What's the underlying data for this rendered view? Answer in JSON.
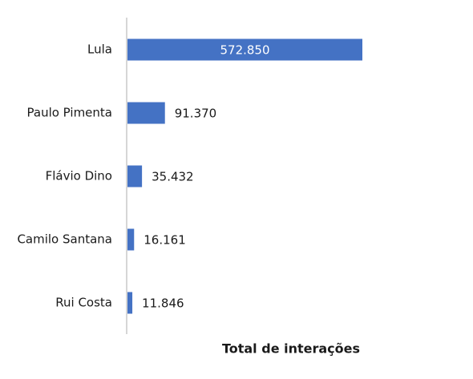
{
  "chart_data": {
    "type": "bar",
    "orientation": "horizontal",
    "x_label": "Total de interações",
    "categories": [
      "Lula",
      "Paulo Pimenta",
      "Flávio Dino",
      "Camilo Santana",
      "Rui Costa"
    ],
    "values": [
      572850,
      91370,
      35432,
      16161,
      11846
    ],
    "value_labels": [
      "572.850",
      "91.370",
      "35.432",
      "16.161",
      "11.846"
    ],
    "color": "#4472c4"
  }
}
